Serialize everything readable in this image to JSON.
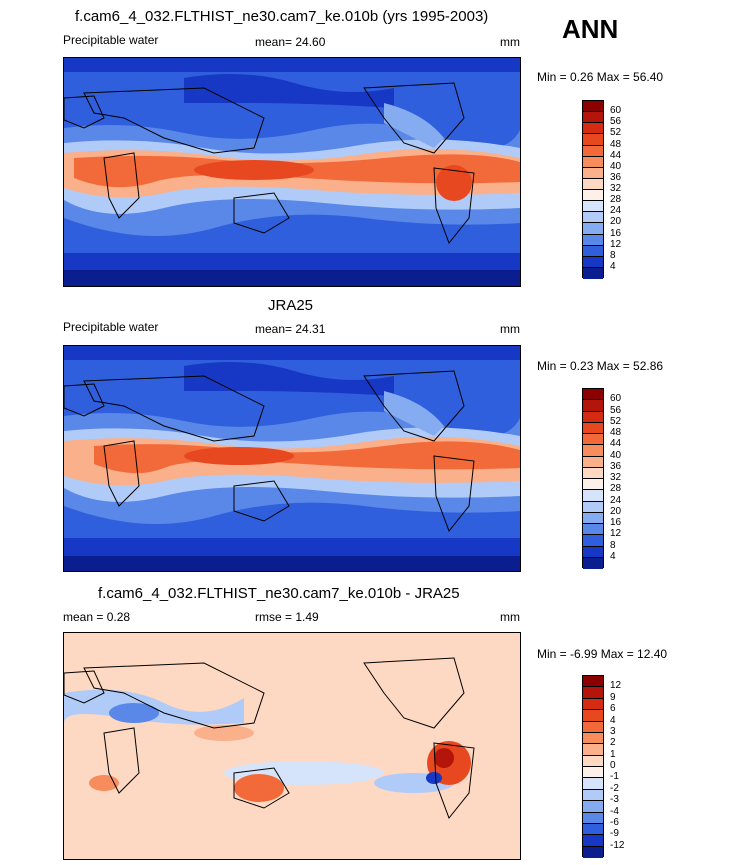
{
  "season": "ANN",
  "panels": [
    {
      "title": "f.cam6_4_032.FLTHIST_ne30.cam7_ke.010b (yrs 1995-2003)",
      "left_label": "Precipitable water",
      "center_label": "mean=  24.60",
      "units": "mm",
      "minmax": "Min =   0.26 Max =  56.40",
      "field": "model"
    },
    {
      "title": "JRA25",
      "left_label": "Precipitable water",
      "center_label": "mean=  24.31",
      "units": "mm",
      "minmax": "Min =   0.23 Max =  52.86",
      "field": "obs"
    },
    {
      "title": "f.cam6_4_032.FLTHIST_ne30.cam7_ke.010b - JRA25",
      "left_label": "mean =   0.28",
      "center_label": "rmse =   1.49",
      "units": "mm",
      "minmax": "Min =  -6.99 Max =  12.40",
      "field": "diff"
    }
  ],
  "colorbars": {
    "absolute": {
      "labels": [
        "60",
        "56",
        "52",
        "48",
        "44",
        "40",
        "36",
        "32",
        "28",
        "24",
        "20",
        "16",
        "12",
        "8",
        "4"
      ],
      "colors": [
        "#8b0000",
        "#b3150a",
        "#d42b12",
        "#e8481f",
        "#f26a3a",
        "#f78c5c",
        "#fab08a",
        "#fdd8c2",
        "#fdf0e8",
        "#d6e4fb",
        "#b0cbf7",
        "#85acf0",
        "#5a88e8",
        "#2f5fdc",
        "#1738c4",
        "#0a1e8f"
      ]
    },
    "difference": {
      "labels": [
        "12",
        "9",
        "6",
        "4",
        "3",
        "2",
        "1",
        "0",
        "-1",
        "-2",
        "-3",
        "-4",
        "-6",
        "-9",
        "-12"
      ],
      "colors": [
        "#8b0000",
        "#b3150a",
        "#d42b12",
        "#e8481f",
        "#f26a3a",
        "#f78c5c",
        "#fab08a",
        "#fdd8c2",
        "#fdf0e8",
        "#d6e4fb",
        "#b0cbf7",
        "#85acf0",
        "#5a88e8",
        "#2f5fdc",
        "#1738c4",
        "#0a1e8f"
      ]
    }
  }
}
